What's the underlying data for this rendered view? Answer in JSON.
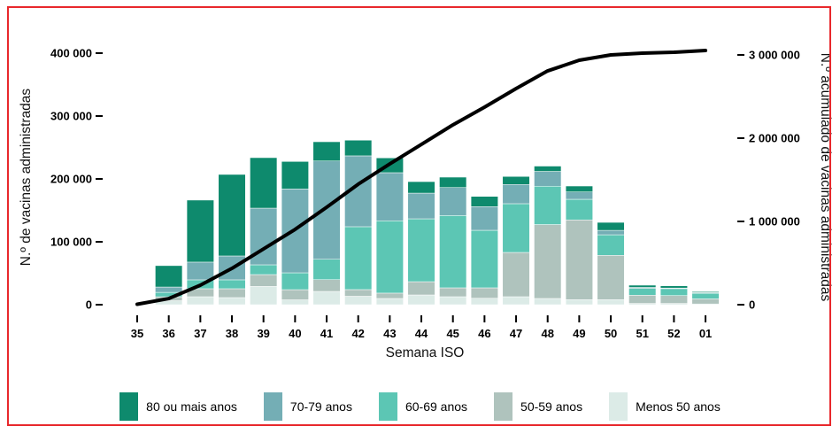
{
  "frame": {
    "border_color": "#e8282c",
    "background": "#ffffff"
  },
  "chart_data": {
    "type": "bar",
    "subtype": "stacked-bars-with-cumulative-line",
    "title": "",
    "grid": false,
    "legend_position": "bottom",
    "categories": [
      "35",
      "36",
      "37",
      "38",
      "39",
      "40",
      "41",
      "42",
      "43",
      "44",
      "45",
      "46",
      "47",
      "48",
      "49",
      "50",
      "51",
      "52",
      "01"
    ],
    "x_axis": {
      "label": "Semana ISO"
    },
    "left_axis": {
      "label": "N.º de vacinas administradas",
      "range": [
        0,
        400000
      ],
      "ticks": [
        {
          "value": 0,
          "label": "0"
        },
        {
          "value": 100000,
          "label": "100 000"
        },
        {
          "value": 200000,
          "label": "200 000"
        },
        {
          "value": 300000,
          "label": "300 000"
        },
        {
          "value": 400000,
          "label": "400 000"
        }
      ]
    },
    "right_axis": {
      "label": "N.º acumulado de vacinas administradas",
      "range": [
        0,
        3000000
      ],
      "ticks": [
        {
          "value": 0,
          "label": "0"
        },
        {
          "value": 1000000,
          "label": "1 000 000"
        },
        {
          "value": 2000000,
          "label": "2 000 000"
        },
        {
          "value": 3000000,
          "label": "3 000 000"
        }
      ]
    },
    "series": [
      {
        "name": "80 ou mais anos",
        "color": "#0e8a6d",
        "values": [
          0,
          34000,
          98600,
          129600,
          80300,
          43700,
          30600,
          24900,
          23500,
          18300,
          16500,
          16300,
          12700,
          8500,
          9400,
          12700,
          3500,
          3500,
          1500
        ]
      },
      {
        "name": "70-79 anos",
        "color": "#74aeb5",
        "values": [
          0,
          8500,
          28200,
          38000,
          90100,
          133300,
          156300,
          112700,
          76500,
          40800,
          44500,
          37600,
          30600,
          23500,
          11700,
          7000,
          1500,
          1000,
          1000
        ]
      },
      {
        "name": "60-69 anos",
        "color": "#5cc6b4",
        "values": [
          0,
          7000,
          14100,
          14100,
          15500,
          26800,
          32400,
          100000,
          115000,
          100000,
          115000,
          91500,
          77500,
          61000,
          32800,
          32800,
          11000,
          11000,
          9000
        ]
      },
      {
        "name": "50-59 anos",
        "color": "#afc3bd",
        "values": [
          0,
          6300,
          12700,
          14100,
          18700,
          16200,
          18700,
          10600,
          8500,
          21100,
          14100,
          16500,
          70400,
          117500,
          126800,
          70400,
          13000,
          12500,
          8000
        ]
      },
      {
        "name": "Menos 50 anos",
        "color": "#dcebe7",
        "values": [
          0,
          6300,
          12700,
          11300,
          29200,
          7700,
          21100,
          13400,
          9900,
          15500,
          12700,
          10300,
          12700,
          9900,
          8000,
          8000,
          2000,
          2000,
          1200
        ]
      }
    ],
    "stack_order_bottom_to_top": [
      "Menos 50 anos",
      "50-59 anos",
      "60-69 anos",
      "70-79 anos",
      "80 ou mais anos"
    ],
    "line": {
      "name": "N.º acumulado de vacinas administradas",
      "color": "#000000",
      "axis": "right",
      "values": [
        5000,
        74000,
        234000,
        436000,
        670000,
        904000,
        1170000,
        1447000,
        1691000,
        1925000,
        2160000,
        2372000,
        2596000,
        2808000,
        2936000,
        3000000,
        3021000,
        3032000,
        3053000
      ]
    }
  }
}
